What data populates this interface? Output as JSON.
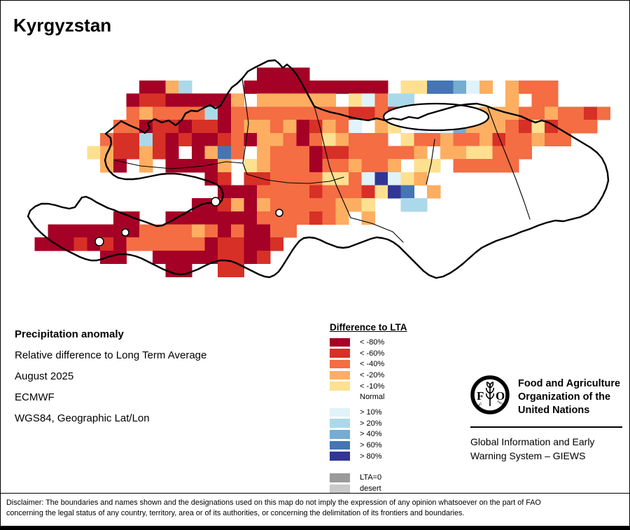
{
  "title": "Kyrgyzstan",
  "info": {
    "heading": "Precipitation anomaly",
    "subtitle": "Relative difference to Long Term Average",
    "date": "August 2025",
    "source": "ECMWF",
    "projection": "WGS84, Geographic Lat/Lon"
  },
  "legend": {
    "title": "Difference to LTA",
    "items": [
      {
        "code": "A",
        "label": "< -80%",
        "color": "#a50026",
        "group": "red"
      },
      {
        "code": "B",
        "label": "< -60%",
        "color": "#d73027",
        "group": "red"
      },
      {
        "code": "C",
        "label": "< -40%",
        "color": "#f46d43",
        "group": "red"
      },
      {
        "code": "D",
        "label": "< -20%",
        "color": "#fdae61",
        "group": "red"
      },
      {
        "code": "E",
        "label": "< -10%",
        "color": "#fee090",
        "group": "red"
      },
      {
        "code": "N",
        "label": "Normal",
        "color": "#ffffff",
        "group": "normal"
      },
      {
        "code": "F",
        "label": "> 10%",
        "color": "#e0f3f8",
        "group": "blue"
      },
      {
        "code": "G",
        "label": "> 20%",
        "color": "#abd9e9",
        "group": "blue"
      },
      {
        "code": "H",
        "label": "> 40%",
        "color": "#74add1",
        "group": "blue"
      },
      {
        "code": "I",
        "label": "> 60%",
        "color": "#4575b4",
        "group": "blue"
      },
      {
        "code": "J",
        "label": "> 80%",
        "color": "#313695",
        "group": "blue"
      },
      {
        "code": "Z",
        "label": "LTA=0",
        "color": "#9a9a9a",
        "group": "gray"
      },
      {
        "code": "X",
        "label": "desert",
        "color": "#c9c9c9",
        "group": "gray"
      }
    ]
  },
  "footer": {
    "fao_logo_text": "FAO",
    "fao_motto_left": "FIAT",
    "fao_motto_right": "PANIS",
    "org_line1": "Food and Agriculture",
    "org_line2": "Organization of the",
    "org_line3": "United Nations",
    "giews_line1": "Global Information and Early",
    "giews_line2": "Warning System – GIEWS"
  },
  "disclaimer": {
    "line1": "Disclaimer: The boundaries and names shown and the designations used on this map do not imply the expression of any opinion whatsoever on the part of FAO",
    "line2": "concerning the legal status of any country, territory, area or of its authorities, or concerning the delimitation of its frontiers and boundaries."
  },
  "chart_data": {
    "type": "heatmap",
    "title": "Precipitation anomaly - relative difference to Long Term Average, Kyrgyzstan, August 2025 (ECMWF)",
    "units": "% difference to LTA",
    "legend_position": "bottom-center",
    "palette": {
      "A": "#a50026",
      "B": "#d73027",
      "C": "#f46d43",
      "D": "#fdae61",
      "E": "#fee090",
      "N": "#ffffff",
      "F": "#e0f3f8",
      "G": "#abd9e9",
      "H": "#74add1",
      "I": "#4575b4",
      "J": "#313695",
      "Z": "#9a9a9a",
      "X": "#c9c9c9"
    },
    "palette_meaning": {
      "A": "< -80%",
      "B": "< -60%",
      "C": "< -40%",
      "D": "< -20%",
      "E": "< -10%",
      "N": "Normal",
      "F": "> 10%",
      "G": "> 20%",
      "H": "> 40%",
      "I": "> 60%",
      "J": "> 80%",
      "Z": "LTA=0",
      "X": "desert",
      ".": "no data / outside"
    },
    "grid_note": "Approximate 45x20 raster of the map cells, row 0 = top (read from screenshot). '.' = white/no cell.",
    "grid": [
      ".............................................",
      ".............................................",
      "..................AAAA.......................",
      ".........AADG....AAAAAAAAAAA.EEIIHFD.DCCC....",
      "........ABBAAAAAD.DDDDDD.EFCGG.......D.CC....",
      "........CDCCCCGACCCCCCCCCBBCB.B...EDDDCCDCCBC",
      ".......CCABBABBACDDCDABDCF.DE.F.FHDDDCBEBCCC.",
      "......CBBGBABAABCADDCACEDCCC.ECCDCCDBCCDCC...",
      ".....EDBBDBA.ADIC.DCCCABBCCCCCD.DDEECCC......",
      "......DA.D.AAAAD.EDCCCACCDCCD.EE.CCCCC.......",
      "..............AB.BBCCCCEECFJFED..............",
      "...............AAACCCCBCCCBEJI.D.............",
      ".............AABDADCCCCCDDE..GG..............",
      ".......AA..AAAAAAACCCCBCD.D..................",
      "..AAAAAAACCCCDCACAACC........................",
      ".AAABABACCCCCCABBAAB.........................",
      "......AA..AAAAABBAB..........................",
      "...........AA..BB............................",
      ".............................................",
      "............................................."
    ]
  }
}
